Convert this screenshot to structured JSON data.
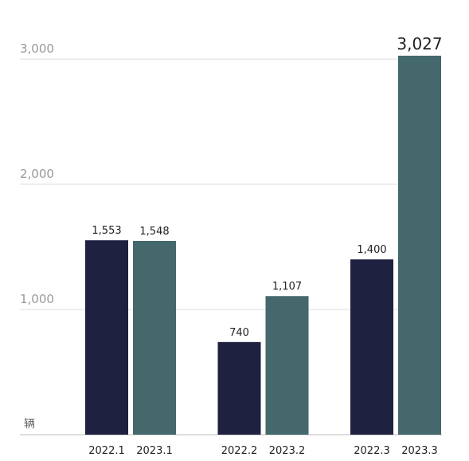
{
  "chart_data": {
    "type": "bar",
    "y_label": "辆",
    "categories": [
      "2022.1",
      "2023.1",
      "2022.2",
      "2023.2",
      "2022.3",
      "2023.3"
    ],
    "values": [
      1553,
      1548,
      740,
      1107,
      1400,
      3027
    ],
    "value_labels": [
      "1,553",
      "1,548",
      "740",
      "1,107",
      "1,400",
      "3,027"
    ],
    "colors": [
      "#1e2140",
      "#44686b",
      "#1e2140",
      "#44686b",
      "#1e2140",
      "#44686b"
    ],
    "ylim": [
      0,
      3300
    ],
    "yticks": [
      {
        "value": 1000,
        "label": "1,000"
      },
      {
        "value": 2000,
        "label": "2,000"
      },
      {
        "value": 3000,
        "label": "3,000"
      }
    ],
    "grid": true
  }
}
